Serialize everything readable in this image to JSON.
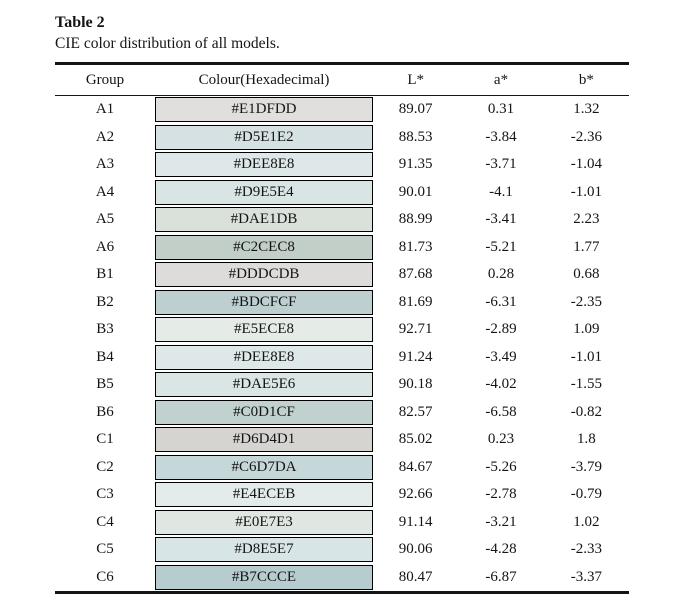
{
  "page": {
    "title": "Table 2",
    "subtitle": "CIE color distribution of all models."
  },
  "table": {
    "headers": [
      "Group",
      "Colour(Hexadecimal)",
      "L*",
      "a*",
      "b*"
    ],
    "rule_color": "#141414",
    "swatch_border_color": "#000000",
    "rows": [
      {
        "group": "A1",
        "hex": "#E1DFDD",
        "L": "89.07",
        "a": "0.31",
        "b": "1.32"
      },
      {
        "group": "A2",
        "hex": "#D5E1E2",
        "L": "88.53",
        "a": "-3.84",
        "b": "-2.36"
      },
      {
        "group": "A3",
        "hex": "#DEE8E8",
        "L": "91.35",
        "a": "-3.71",
        "b": "-1.04"
      },
      {
        "group": "A4",
        "hex": "#D9E5E4",
        "L": "90.01",
        "a": "-4.1",
        "b": "-1.01"
      },
      {
        "group": "A5",
        "hex": "#DAE1DB",
        "L": "88.99",
        "a": "-3.41",
        "b": "2.23"
      },
      {
        "group": "A6",
        "hex": "#C2CEC8",
        "L": "81.73",
        "a": "-5.21",
        "b": "1.77"
      },
      {
        "group": "B1",
        "hex": "#DDDCDB",
        "L": "87.68",
        "a": "0.28",
        "b": "0.68"
      },
      {
        "group": "B2",
        "hex": "#BDCFCF",
        "L": "81.69",
        "a": "-6.31",
        "b": "-2.35"
      },
      {
        "group": "B3",
        "hex": "#E5ECE8",
        "L": "92.71",
        "a": "-2.89",
        "b": "1.09"
      },
      {
        "group": "B4",
        "hex": "#DEE8E8",
        "L": "91.24",
        "a": "-3.49",
        "b": "-1.01"
      },
      {
        "group": "B5",
        "hex": "#DAE5E6",
        "L": "90.18",
        "a": "-4.02",
        "b": "-1.55"
      },
      {
        "group": "B6",
        "hex": "#C0D1CF",
        "L": "82.57",
        "a": "-6.58",
        "b": "-0.82"
      },
      {
        "group": "C1",
        "hex": "#D6D4D1",
        "L": "85.02",
        "a": "0.23",
        "b": "1.8"
      },
      {
        "group": "C2",
        "hex": "#C6D7DA",
        "L": "84.67",
        "a": "-5.26",
        "b": "-3.79"
      },
      {
        "group": "C3",
        "hex": "#E4ECEB",
        "L": "92.66",
        "a": "-2.78",
        "b": "-0.79"
      },
      {
        "group": "C4",
        "hex": "#E0E7E3",
        "L": "91.14",
        "a": "-3.21",
        "b": "1.02"
      },
      {
        "group": "C5",
        "hex": "#D8E5E7",
        "L": "90.06",
        "a": "-4.28",
        "b": "-2.33"
      },
      {
        "group": "C6",
        "hex": "#B7CCCE",
        "L": "80.47",
        "a": "-6.87",
        "b": "-3.37"
      }
    ]
  }
}
